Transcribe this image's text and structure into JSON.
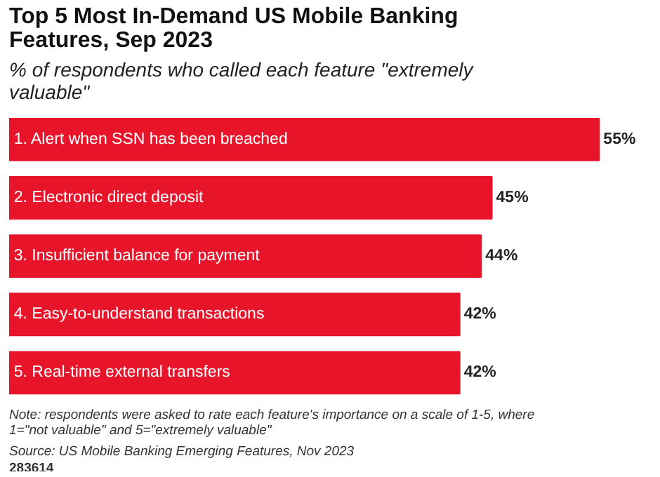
{
  "chart_data": {
    "type": "bar",
    "orientation": "horizontal",
    "title": "Top 5 Most In-Demand US Mobile Banking Features, Sep 2023",
    "subtitle": "% of respondents who called each feature \"extremely valuable\"",
    "categories": [
      "1. Alert when SSN has been breached",
      "2. Electronic direct deposit",
      "3. Insufficient balance for payment",
      "4. Easy-to-understand transactions",
      "5. Real-time external transfers"
    ],
    "values": [
      55,
      45,
      44,
      42,
      42
    ],
    "value_labels": [
      "55%",
      "45%",
      "44%",
      "42%",
      "42%"
    ],
    "color": "#e8142a",
    "annotations": [
      "Note: respondents were asked to rate each feature's importance on a scale of 1-5, where 1=\"not valuable\" and 5=\"extremely valuable\"",
      "Source: US Mobile Banking Emerging Features, Nov 2023",
      "283614"
    ]
  }
}
